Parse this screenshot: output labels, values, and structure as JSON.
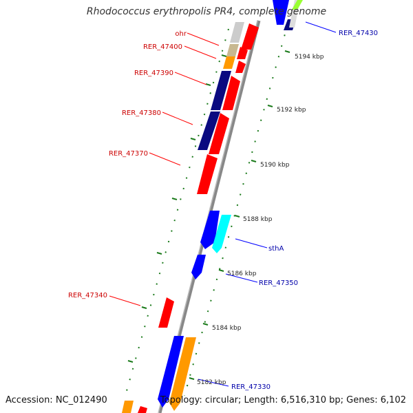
{
  "title": "Rhodococcus erythropolis PR4, complete genome",
  "footer": {
    "accession": "Accession: NC_012490",
    "stats": "Topology: circular; Length: 6,516,310 bp; Genes: 6,102"
  },
  "ticks": [
    "5194 kbp",
    "5192 kbp",
    "5190 kbp",
    "5188 kbp",
    "5186 kbp",
    "5184 kbp",
    "5182 kbp"
  ],
  "gene_labels": {
    "left": [
      "ohr",
      "RER_47400",
      "RER_47390",
      "RER_47380",
      "RER_47370",
      "RER_47340"
    ],
    "right": [
      "RER_47430",
      "sthA",
      "RER_47350",
      "RER_47330"
    ]
  },
  "colors": {
    "red": "#ff0000",
    "navy": "#0a0a80",
    "blue": "#0000ff",
    "cyan": "#00ffff",
    "orange": "#ff9900",
    "light_gray": "#cccccc",
    "tan": "#c8b890",
    "lime": "#99ff33",
    "backbone": "#888888",
    "tick_green": "#1a7a1a",
    "label_red": "#cc0000",
    "label_blue": "#0000aa"
  }
}
